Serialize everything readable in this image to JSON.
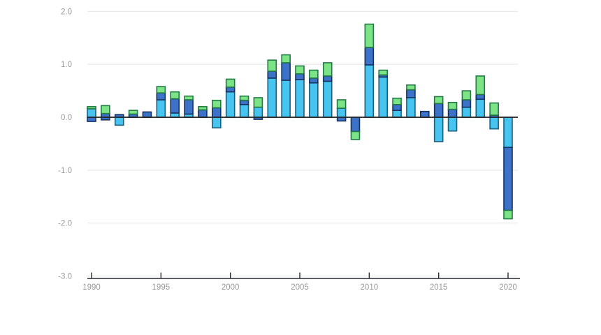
{
  "chart_data": {
    "type": "bar",
    "stacked": true,
    "title": "",
    "xlabel": "",
    "ylabel": "",
    "legend": "none",
    "grid": "horizontal",
    "ylim": [
      -3.0,
      2.0
    ],
    "y_tick_values": [
      2.0,
      1.0,
      0.0,
      -1.0,
      -2.0,
      -3.0
    ],
    "y_tick_labels": [
      "2.0",
      "1.0",
      "0.0",
      "-1.0",
      "-2.0",
      "-3.0"
    ],
    "x_tick_values": [
      1990,
      1995,
      2000,
      2005,
      2010,
      2015,
      2020
    ],
    "x_tick_labels": [
      "1990",
      "1995",
      "2000",
      "2005",
      "2010",
      "2015",
      "2020"
    ],
    "series_order": [
      "cyan",
      "blue",
      "green"
    ],
    "colors": {
      "cyan": "#47c4ef",
      "cyan_border": "#1c5f7d",
      "blue": "#3d72c9",
      "blue_border": "#16325f",
      "green": "#7ce387",
      "green_border": "#237a44",
      "gridline": "#eaeaea",
      "zero_line": "#26292e",
      "axis_line": "#26292e",
      "tick_label": "#9a9a9a",
      "background": "#ffffff"
    },
    "bars": [
      {
        "year": 1990,
        "pos": {
          "cyan": 0.16,
          "blue": 0.0,
          "green": 0.04
        },
        "neg": {
          "cyan": 0.0,
          "blue": 0.08,
          "green": 0.0
        }
      },
      {
        "year": 1991,
        "pos": {
          "cyan": 0.0,
          "blue": 0.07,
          "green": 0.15
        },
        "neg": {
          "cyan": 0.0,
          "blue": 0.05,
          "green": 0.0
        }
      },
      {
        "year": 1992,
        "pos": {
          "cyan": 0.0,
          "blue": 0.05,
          "green": 0.0
        },
        "neg": {
          "cyan": 0.15,
          "blue": 0.0,
          "green": 0.0
        }
      },
      {
        "year": 1993,
        "pos": {
          "cyan": 0.0,
          "blue": 0.06,
          "green": 0.07
        },
        "neg": {
          "cyan": 0.0,
          "blue": 0.0,
          "green": 0.0
        }
      },
      {
        "year": 1994,
        "pos": {
          "cyan": 0.0,
          "blue": 0.1,
          "green": 0.0
        },
        "neg": {
          "cyan": 0.0,
          "blue": 0.0,
          "green": 0.0
        }
      },
      {
        "year": 1995,
        "pos": {
          "cyan": 0.33,
          "blue": 0.13,
          "green": 0.12
        },
        "neg": {
          "cyan": 0.0,
          "blue": 0.0,
          "green": 0.0
        }
      },
      {
        "year": 1996,
        "pos": {
          "cyan": 0.08,
          "blue": 0.27,
          "green": 0.13
        },
        "neg": {
          "cyan": 0.0,
          "blue": 0.0,
          "green": 0.0
        }
      },
      {
        "year": 1997,
        "pos": {
          "cyan": 0.06,
          "blue": 0.27,
          "green": 0.07
        },
        "neg": {
          "cyan": 0.0,
          "blue": 0.0,
          "green": 0.0
        }
      },
      {
        "year": 1998,
        "pos": {
          "cyan": 0.0,
          "blue": 0.14,
          "green": 0.06
        },
        "neg": {
          "cyan": 0.0,
          "blue": 0.0,
          "green": 0.0
        }
      },
      {
        "year": 1999,
        "pos": {
          "cyan": 0.0,
          "blue": 0.18,
          "green": 0.14
        },
        "neg": {
          "cyan": 0.2,
          "blue": 0.0,
          "green": 0.0
        }
      },
      {
        "year": 2000,
        "pos": {
          "cyan": 0.48,
          "blue": 0.09,
          "green": 0.15
        },
        "neg": {
          "cyan": 0.0,
          "blue": 0.0,
          "green": 0.0
        }
      },
      {
        "year": 2001,
        "pos": {
          "cyan": 0.24,
          "blue": 0.08,
          "green": 0.08
        },
        "neg": {
          "cyan": 0.0,
          "blue": 0.0,
          "green": 0.0
        }
      },
      {
        "year": 2002,
        "pos": {
          "cyan": 0.19,
          "blue": 0.0,
          "green": 0.18
        },
        "neg": {
          "cyan": 0.0,
          "blue": 0.04,
          "green": 0.0
        }
      },
      {
        "year": 2003,
        "pos": {
          "cyan": 0.74,
          "blue": 0.13,
          "green": 0.21
        },
        "neg": {
          "cyan": 0.0,
          "blue": 0.0,
          "green": 0.0
        }
      },
      {
        "year": 2004,
        "pos": {
          "cyan": 0.7,
          "blue": 0.33,
          "green": 0.15
        },
        "neg": {
          "cyan": 0.0,
          "blue": 0.0,
          "green": 0.0
        }
      },
      {
        "year": 2005,
        "pos": {
          "cyan": 0.71,
          "blue": 0.11,
          "green": 0.15
        },
        "neg": {
          "cyan": 0.0,
          "blue": 0.0,
          "green": 0.0
        }
      },
      {
        "year": 2006,
        "pos": {
          "cyan": 0.65,
          "blue": 0.09,
          "green": 0.15
        },
        "neg": {
          "cyan": 0.0,
          "blue": 0.0,
          "green": 0.0
        }
      },
      {
        "year": 2007,
        "pos": {
          "cyan": 0.68,
          "blue": 0.1,
          "green": 0.25
        },
        "neg": {
          "cyan": 0.0,
          "blue": 0.0,
          "green": 0.0
        }
      },
      {
        "year": 2008,
        "pos": {
          "cyan": 0.17,
          "blue": 0.0,
          "green": 0.16
        },
        "neg": {
          "cyan": 0.0,
          "blue": 0.07,
          "green": 0.0
        }
      },
      {
        "year": 2009,
        "pos": {
          "cyan": 0.0,
          "blue": 0.0,
          "green": 0.0
        },
        "neg": {
          "cyan": 0.0,
          "blue": 0.27,
          "green": 0.15
        }
      },
      {
        "year": 2010,
        "pos": {
          "cyan": 0.99,
          "blue": 0.33,
          "green": 0.44
        },
        "neg": {
          "cyan": 0.0,
          "blue": 0.0,
          "green": 0.0
        }
      },
      {
        "year": 2011,
        "pos": {
          "cyan": 0.76,
          "blue": 0.04,
          "green": 0.09
        },
        "neg": {
          "cyan": 0.0,
          "blue": 0.0,
          "green": 0.0
        }
      },
      {
        "year": 2012,
        "pos": {
          "cyan": 0.13,
          "blue": 0.11,
          "green": 0.12
        },
        "neg": {
          "cyan": 0.0,
          "blue": 0.0,
          "green": 0.0
        }
      },
      {
        "year": 2013,
        "pos": {
          "cyan": 0.37,
          "blue": 0.15,
          "green": 0.09
        },
        "neg": {
          "cyan": 0.0,
          "blue": 0.0,
          "green": 0.0
        }
      },
      {
        "year": 2014,
        "pos": {
          "cyan": 0.0,
          "blue": 0.11,
          "green": 0.0
        },
        "neg": {
          "cyan": 0.0,
          "blue": 0.0,
          "green": 0.0
        }
      },
      {
        "year": 2015,
        "pos": {
          "cyan": 0.0,
          "blue": 0.26,
          "green": 0.13
        },
        "neg": {
          "cyan": 0.46,
          "blue": 0.0,
          "green": 0.0
        }
      },
      {
        "year": 2016,
        "pos": {
          "cyan": 0.0,
          "blue": 0.15,
          "green": 0.13
        },
        "neg": {
          "cyan": 0.26,
          "blue": 0.0,
          "green": 0.0
        }
      },
      {
        "year": 2017,
        "pos": {
          "cyan": 0.19,
          "blue": 0.14,
          "green": 0.17
        },
        "neg": {
          "cyan": 0.0,
          "blue": 0.0,
          "green": 0.0
        }
      },
      {
        "year": 2018,
        "pos": {
          "cyan": 0.34,
          "blue": 0.09,
          "green": 0.35
        },
        "neg": {
          "cyan": 0.0,
          "blue": 0.0,
          "green": 0.0
        }
      },
      {
        "year": 2019,
        "pos": {
          "cyan": 0.0,
          "blue": 0.04,
          "green": 0.23
        },
        "neg": {
          "cyan": 0.22,
          "blue": 0.0,
          "green": 0.0
        }
      },
      {
        "year": 2020,
        "pos": {
          "cyan": 0.0,
          "blue": 0.0,
          "green": 0.0
        },
        "neg": {
          "cyan": 0.57,
          "blue": 1.19,
          "green": 0.16
        }
      }
    ]
  }
}
